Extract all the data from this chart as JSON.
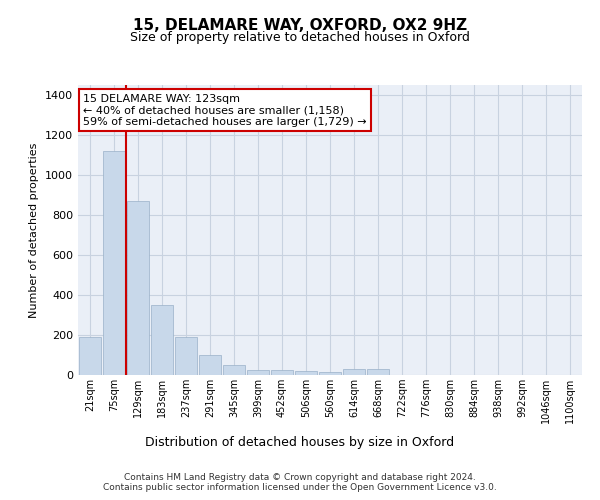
{
  "title": "15, DELAMARE WAY, OXFORD, OX2 9HZ",
  "subtitle": "Size of property relative to detached houses in Oxford",
  "xlabel": "Distribution of detached houses by size in Oxford",
  "ylabel": "Number of detached properties",
  "categories": [
    "21sqm",
    "75sqm",
    "129sqm",
    "183sqm",
    "237sqm",
    "291sqm",
    "345sqm",
    "399sqm",
    "452sqm",
    "506sqm",
    "560sqm",
    "614sqm",
    "668sqm",
    "722sqm",
    "776sqm",
    "830sqm",
    "884sqm",
    "938sqm",
    "992sqm",
    "1046sqm",
    "1100sqm"
  ],
  "values": [
    190,
    1120,
    870,
    350,
    190,
    100,
    50,
    25,
    25,
    20,
    15,
    30,
    30,
    0,
    0,
    0,
    0,
    0,
    0,
    0,
    0
  ],
  "bar_color": "#c8d8ea",
  "bar_edge_color": "#9ab0c8",
  "property_sqm": 123,
  "annotation_text": "15 DELAMARE WAY: 123sqm\n← 40% of detached houses are smaller (1,158)\n59% of semi-detached houses are larger (1,729) →",
  "annotation_box_color": "#ffffff",
  "annotation_box_edge": "#cc0000",
  "property_line_color": "#cc0000",
  "footer_text": "Contains HM Land Registry data © Crown copyright and database right 2024.\nContains public sector information licensed under the Open Government Licence v3.0.",
  "background_color": "#ffffff",
  "plot_bg_color": "#eaeff7",
  "grid_color": "#c8d2e0",
  "ylim": [
    0,
    1450
  ],
  "yticks": [
    0,
    200,
    400,
    600,
    800,
    1000,
    1200,
    1400
  ]
}
